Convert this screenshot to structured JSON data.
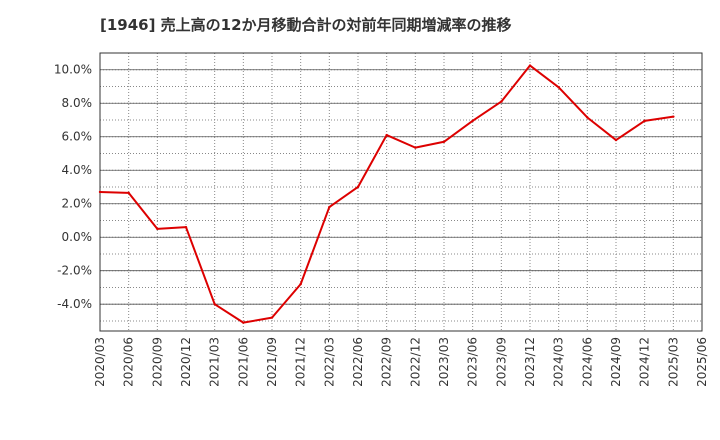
{
  "chart_data": {
    "type": "line",
    "title": "[1946]  売上高の12か月移動合計の対前年同期増減率の推移",
    "xlabel": "",
    "ylabel": "",
    "ylim": [
      -5.6,
      11.0
    ],
    "y_ticks": [
      10.0,
      8.0,
      6.0,
      4.0,
      2.0,
      0.0,
      -2.0,
      -4.0
    ],
    "y_tick_labels": [
      "10.0%",
      "8.0%",
      "6.0%",
      "4.0%",
      "2.0%",
      "0.0%",
      "-2.0%",
      "-4.0%"
    ],
    "categories": [
      "2020/03",
      "2020/06",
      "2020/09",
      "2020/12",
      "2021/03",
      "2021/06",
      "2021/09",
      "2021/12",
      "2022/03",
      "2022/06",
      "2022/09",
      "2022/12",
      "2023/03",
      "2023/06",
      "2023/09",
      "2023/12",
      "2024/03",
      "2024/06",
      "2024/09",
      "2024/12",
      "2025/03",
      "2025/06"
    ],
    "series": [
      {
        "name": "対前年同期増減率",
        "color": "#dd0000",
        "values": [
          2.7,
          2.65,
          0.5,
          0.6,
          -4.0,
          -5.1,
          -4.8,
          -2.8,
          1.8,
          3.0,
          6.1,
          5.35,
          5.7,
          6.95,
          8.1,
          10.25,
          8.95,
          7.15,
          5.8,
          6.95,
          7.2,
          null
        ]
      }
    ],
    "grid": true,
    "legend": "none"
  },
  "colors": {
    "axis": "#333333",
    "grid": "#888888",
    "text": "#333333",
    "line": "#dd0000"
  }
}
